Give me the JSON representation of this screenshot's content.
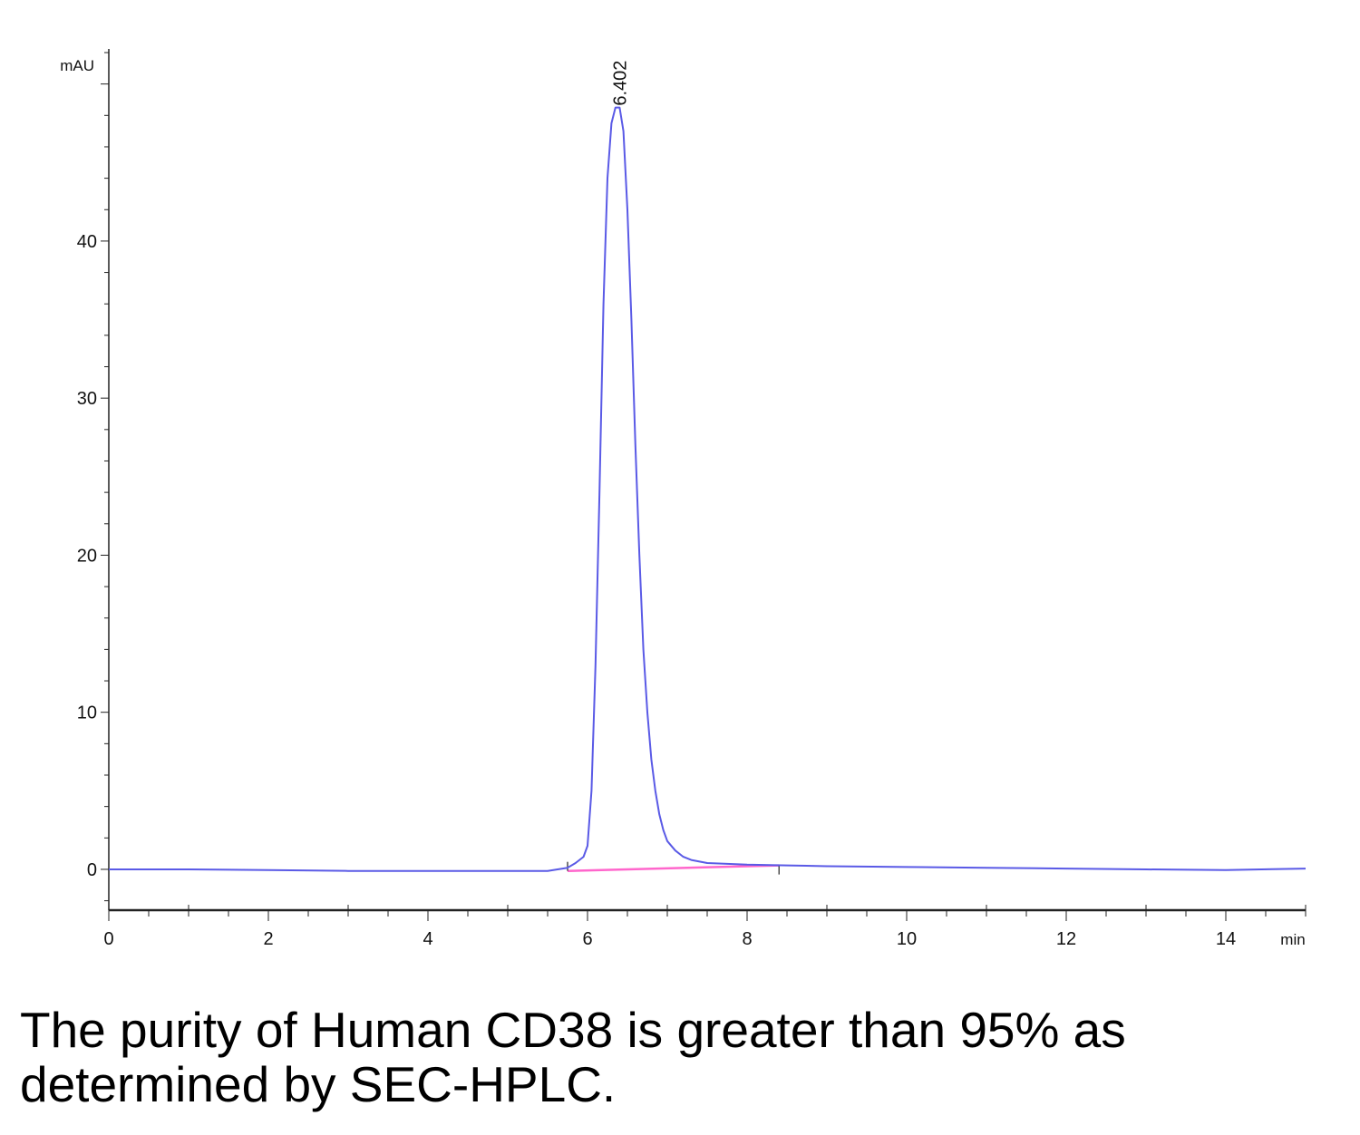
{
  "chart_data": {
    "type": "line",
    "title": "",
    "xlabel": "min",
    "ylabel": "mAU",
    "xlim": [
      0,
      15
    ],
    "ylim": [
      -2.6,
      52
    ],
    "x_major_ticks": [
      0,
      2,
      4,
      6,
      8,
      10,
      12,
      14
    ],
    "y_major_ticks": [
      0,
      10,
      20,
      30,
      40
    ],
    "x_tick_labels": [
      "0",
      "2",
      "4",
      "6",
      "8",
      "10",
      "12",
      "14"
    ],
    "y_tick_labels": [
      "0",
      "10",
      "20",
      "30",
      "40"
    ],
    "grid": false,
    "legend": "none",
    "series": [
      {
        "color": "#5a5ae6",
        "x": [
          0,
          1,
          2,
          3,
          4,
          5,
          5.5,
          5.75,
          5.85,
          5.95,
          6.0,
          6.05,
          6.1,
          6.15,
          6.2,
          6.25,
          6.3,
          6.35,
          6.402,
          6.45,
          6.5,
          6.55,
          6.6,
          6.65,
          6.7,
          6.75,
          6.8,
          6.85,
          6.9,
          6.95,
          7.0,
          7.1,
          7.2,
          7.3,
          7.5,
          7.75,
          8.0,
          8.5,
          9.0,
          10.0,
          11.0,
          12.0,
          13.0,
          14.0,
          15.0
        ],
        "y": [
          0,
          0,
          -0.05,
          -0.1,
          -0.1,
          -0.1,
          -0.1,
          0.1,
          0.4,
          0.8,
          1.5,
          5.0,
          13.0,
          24.0,
          36.0,
          44.0,
          47.5,
          48.5,
          48.5,
          47.0,
          42.0,
          35.0,
          27.0,
          20.0,
          14.0,
          10.0,
          7.0,
          5.0,
          3.5,
          2.5,
          1.8,
          1.2,
          0.8,
          0.6,
          0.4,
          0.35,
          0.3,
          0.25,
          0.2,
          0.15,
          0.1,
          0.05,
          0.0,
          -0.05,
          0.05
        ]
      },
      {
        "color": "#ff66cc",
        "x": [
          5.75,
          8.4
        ],
        "y": [
          -0.1,
          0.25
        ]
      }
    ],
    "annotations": [
      {
        "text": "6.402",
        "x": 6.402,
        "y": 48.5
      }
    ]
  },
  "caption": "The purity of Human CD38 is greater than 95% as determined by SEC-HPLC."
}
